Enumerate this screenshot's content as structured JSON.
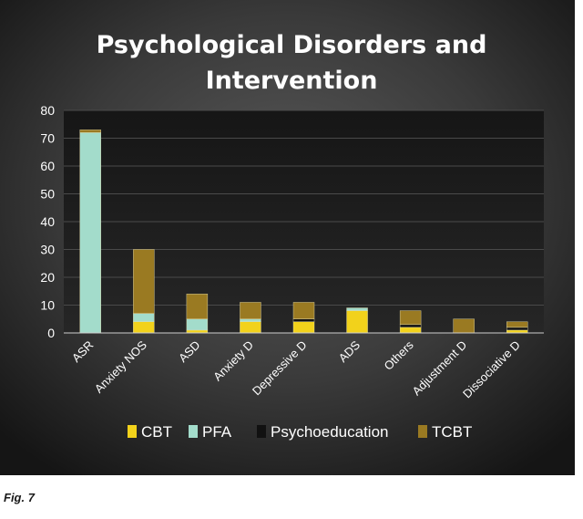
{
  "chart_data": {
    "type": "bar",
    "stacked": true,
    "title": "Psychological Disorders and Intervention",
    "title_lines": [
      "Psychological Disorders and",
      "Intervention"
    ],
    "xlabel": "",
    "ylabel": "",
    "ylim": [
      0,
      80
    ],
    "yticks": [
      0,
      10,
      20,
      30,
      40,
      50,
      60,
      70,
      80
    ],
    "grid": true,
    "legend_position": "bottom",
    "categories": [
      "ASR",
      "Anxiety NOS",
      "ASD",
      "Anxiety D",
      "Depressive D",
      "ADS",
      "Others",
      "Adjustment D",
      "Dissociative D"
    ],
    "series": [
      {
        "name": "CBT",
        "color": "#f2d21b",
        "values": [
          0,
          4,
          1,
          4,
          4,
          8,
          2,
          0,
          1
        ]
      },
      {
        "name": "PFA",
        "color": "#a3dccb",
        "values": [
          72,
          3,
          4,
          1,
          0,
          1,
          0,
          0,
          0
        ]
      },
      {
        "name": "Psychoeducation",
        "color": "#111111",
        "values": [
          0,
          0,
          0,
          0,
          1,
          0,
          1,
          0,
          1
        ]
      },
      {
        "name": "TCBT",
        "color": "#9a7a22",
        "values": [
          1,
          23,
          9,
          6,
          6,
          0,
          5,
          5,
          2
        ]
      }
    ]
  },
  "figure": {
    "caption": "Fig. 7"
  }
}
